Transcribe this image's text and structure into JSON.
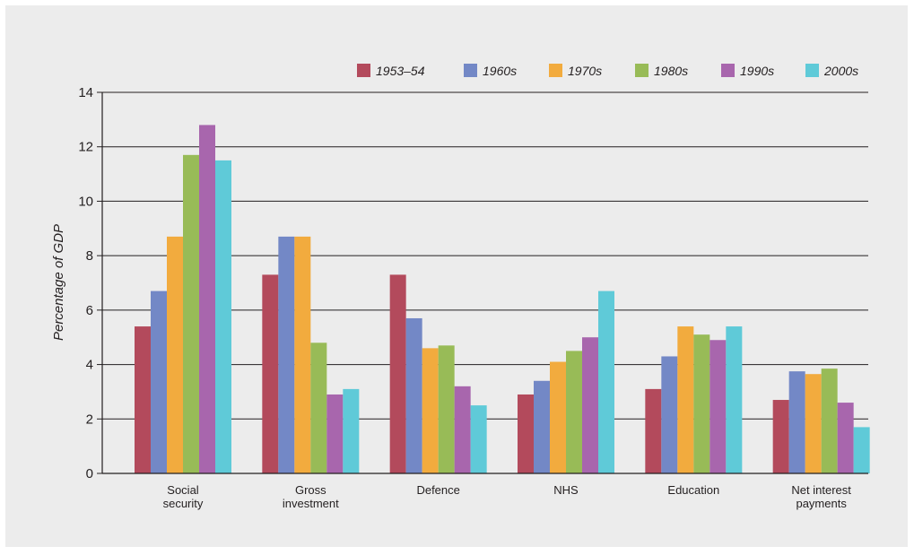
{
  "chart_data": {
    "type": "bar",
    "categories": [
      [
        "Social",
        "security"
      ],
      [
        "Gross",
        "investment"
      ],
      [
        "Defence"
      ],
      [
        "NHS"
      ],
      [
        "Education"
      ],
      [
        "Net interest",
        "payments"
      ]
    ],
    "series": [
      {
        "name": "1953–54",
        "color": "#b34a5c",
        "values": [
          5.4,
          7.3,
          7.3,
          2.9,
          3.1,
          2.7
        ]
      },
      {
        "name": "1960s",
        "color": "#7388c6",
        "values": [
          6.7,
          8.7,
          5.7,
          3.4,
          4.3,
          3.75
        ]
      },
      {
        "name": "1970s",
        "color": "#f2ab3e",
        "values": [
          8.7,
          8.7,
          4.6,
          4.1,
          5.4,
          3.65
        ]
      },
      {
        "name": "1980s",
        "color": "#98bb57",
        "values": [
          11.7,
          4.8,
          4.7,
          4.5,
          5.1,
          3.85
        ]
      },
      {
        "name": "1990s",
        "color": "#a866ad",
        "values": [
          12.8,
          2.9,
          3.2,
          5.0,
          4.9,
          2.6
        ]
      },
      {
        "name": "2000s",
        "color": "#5fcad8",
        "values": [
          11.5,
          3.1,
          2.5,
          6.7,
          5.4,
          1.7
        ]
      }
    ],
    "title": "",
    "xlabel": "",
    "ylabel": "Percentage of GDP",
    "ylim": [
      0,
      14
    ],
    "yticks": [
      0,
      2,
      4,
      6,
      8,
      10,
      12,
      14
    ],
    "grid": true,
    "legend": "top-right"
  }
}
